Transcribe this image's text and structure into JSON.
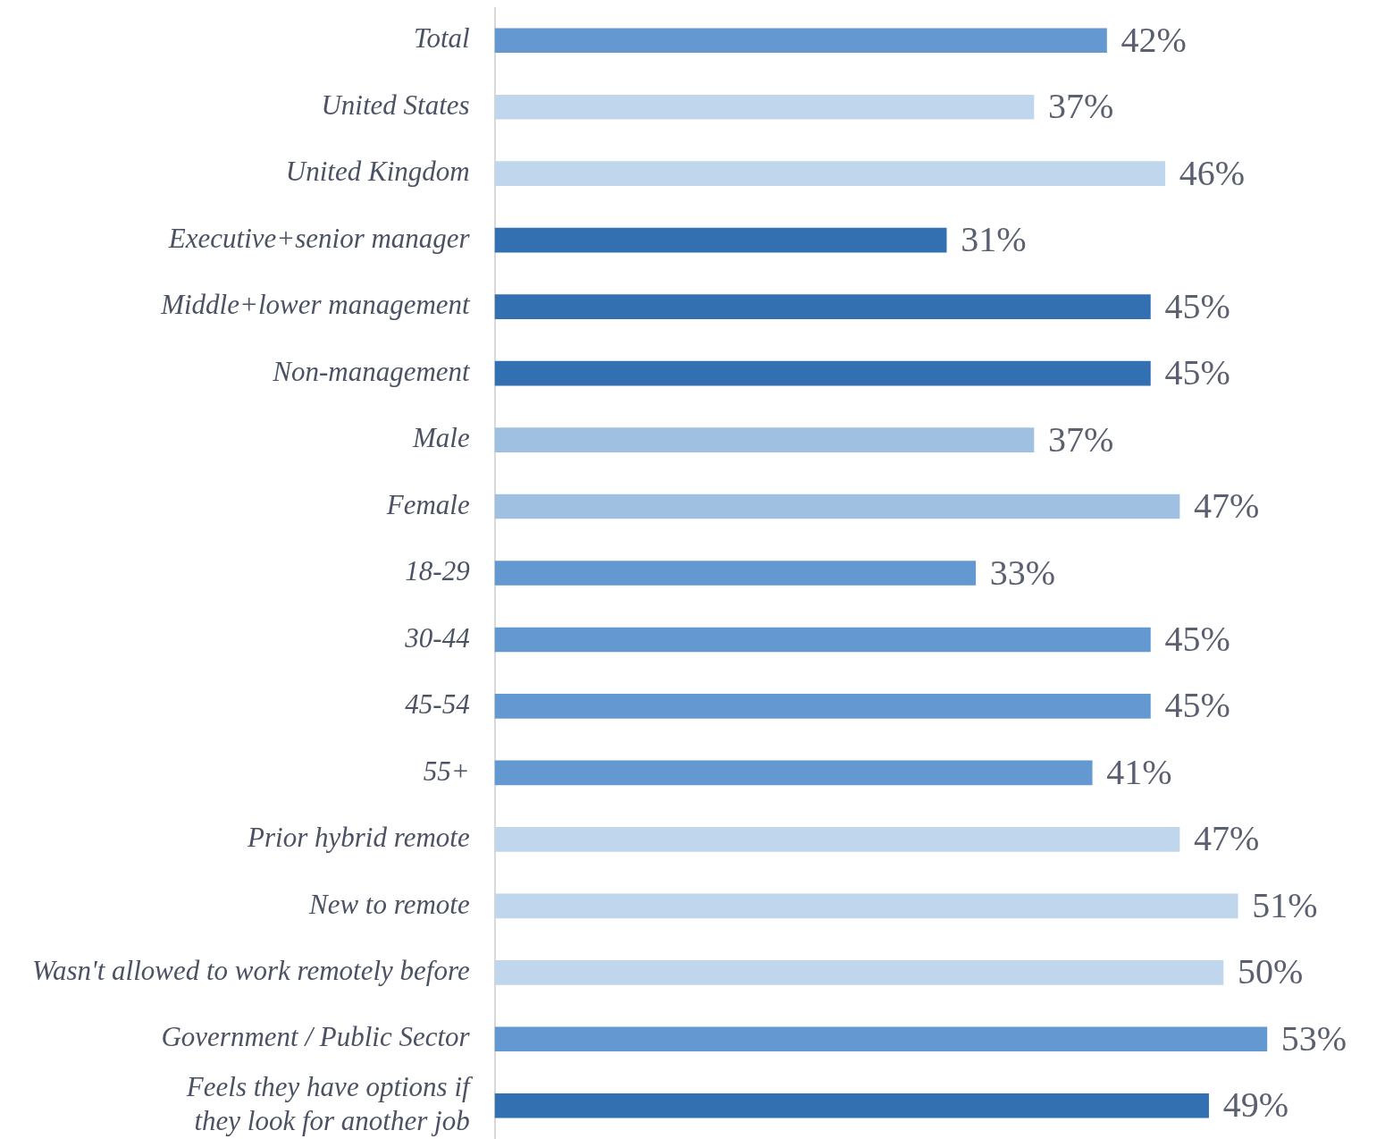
{
  "chart_data": {
    "type": "bar",
    "orientation": "horizontal",
    "categories": [
      "Total",
      "United States",
      "United Kingdom",
      "Executive+senior manager",
      "Middle+lower management",
      "Non-management",
      "Male",
      "Female",
      "18-29",
      "30-44",
      "45-54",
      "55+",
      "Prior hybrid remote",
      "New to remote",
      "Wasn't allowed to work remotely before",
      "Government / Public Sector",
      "Feels they have options if they look for another job"
    ],
    "values": [
      42,
      37,
      46,
      31,
      45,
      45,
      37,
      47,
      33,
      45,
      45,
      41,
      47,
      51,
      50,
      53,
      49
    ],
    "value_labels": [
      "42%",
      "37%",
      "46%",
      "31%",
      "45%",
      "45%",
      "37%",
      "47%",
      "33%",
      "45%",
      "45%",
      "41%",
      "47%",
      "51%",
      "50%",
      "53%",
      "49%"
    ],
    "colors": [
      "#6398d0",
      "#c0d6ec",
      "#c0d6ec",
      "#3370b2",
      "#3370b2",
      "#3370b2",
      "#a0c0e2",
      "#a0c0e2",
      "#6398d0",
      "#6398d0",
      "#6398d0",
      "#6398d0",
      "#c0d6ec",
      "#c0d6ec",
      "#c0d6ec",
      "#6398d0",
      "#3370b2"
    ],
    "legend": false
  }
}
